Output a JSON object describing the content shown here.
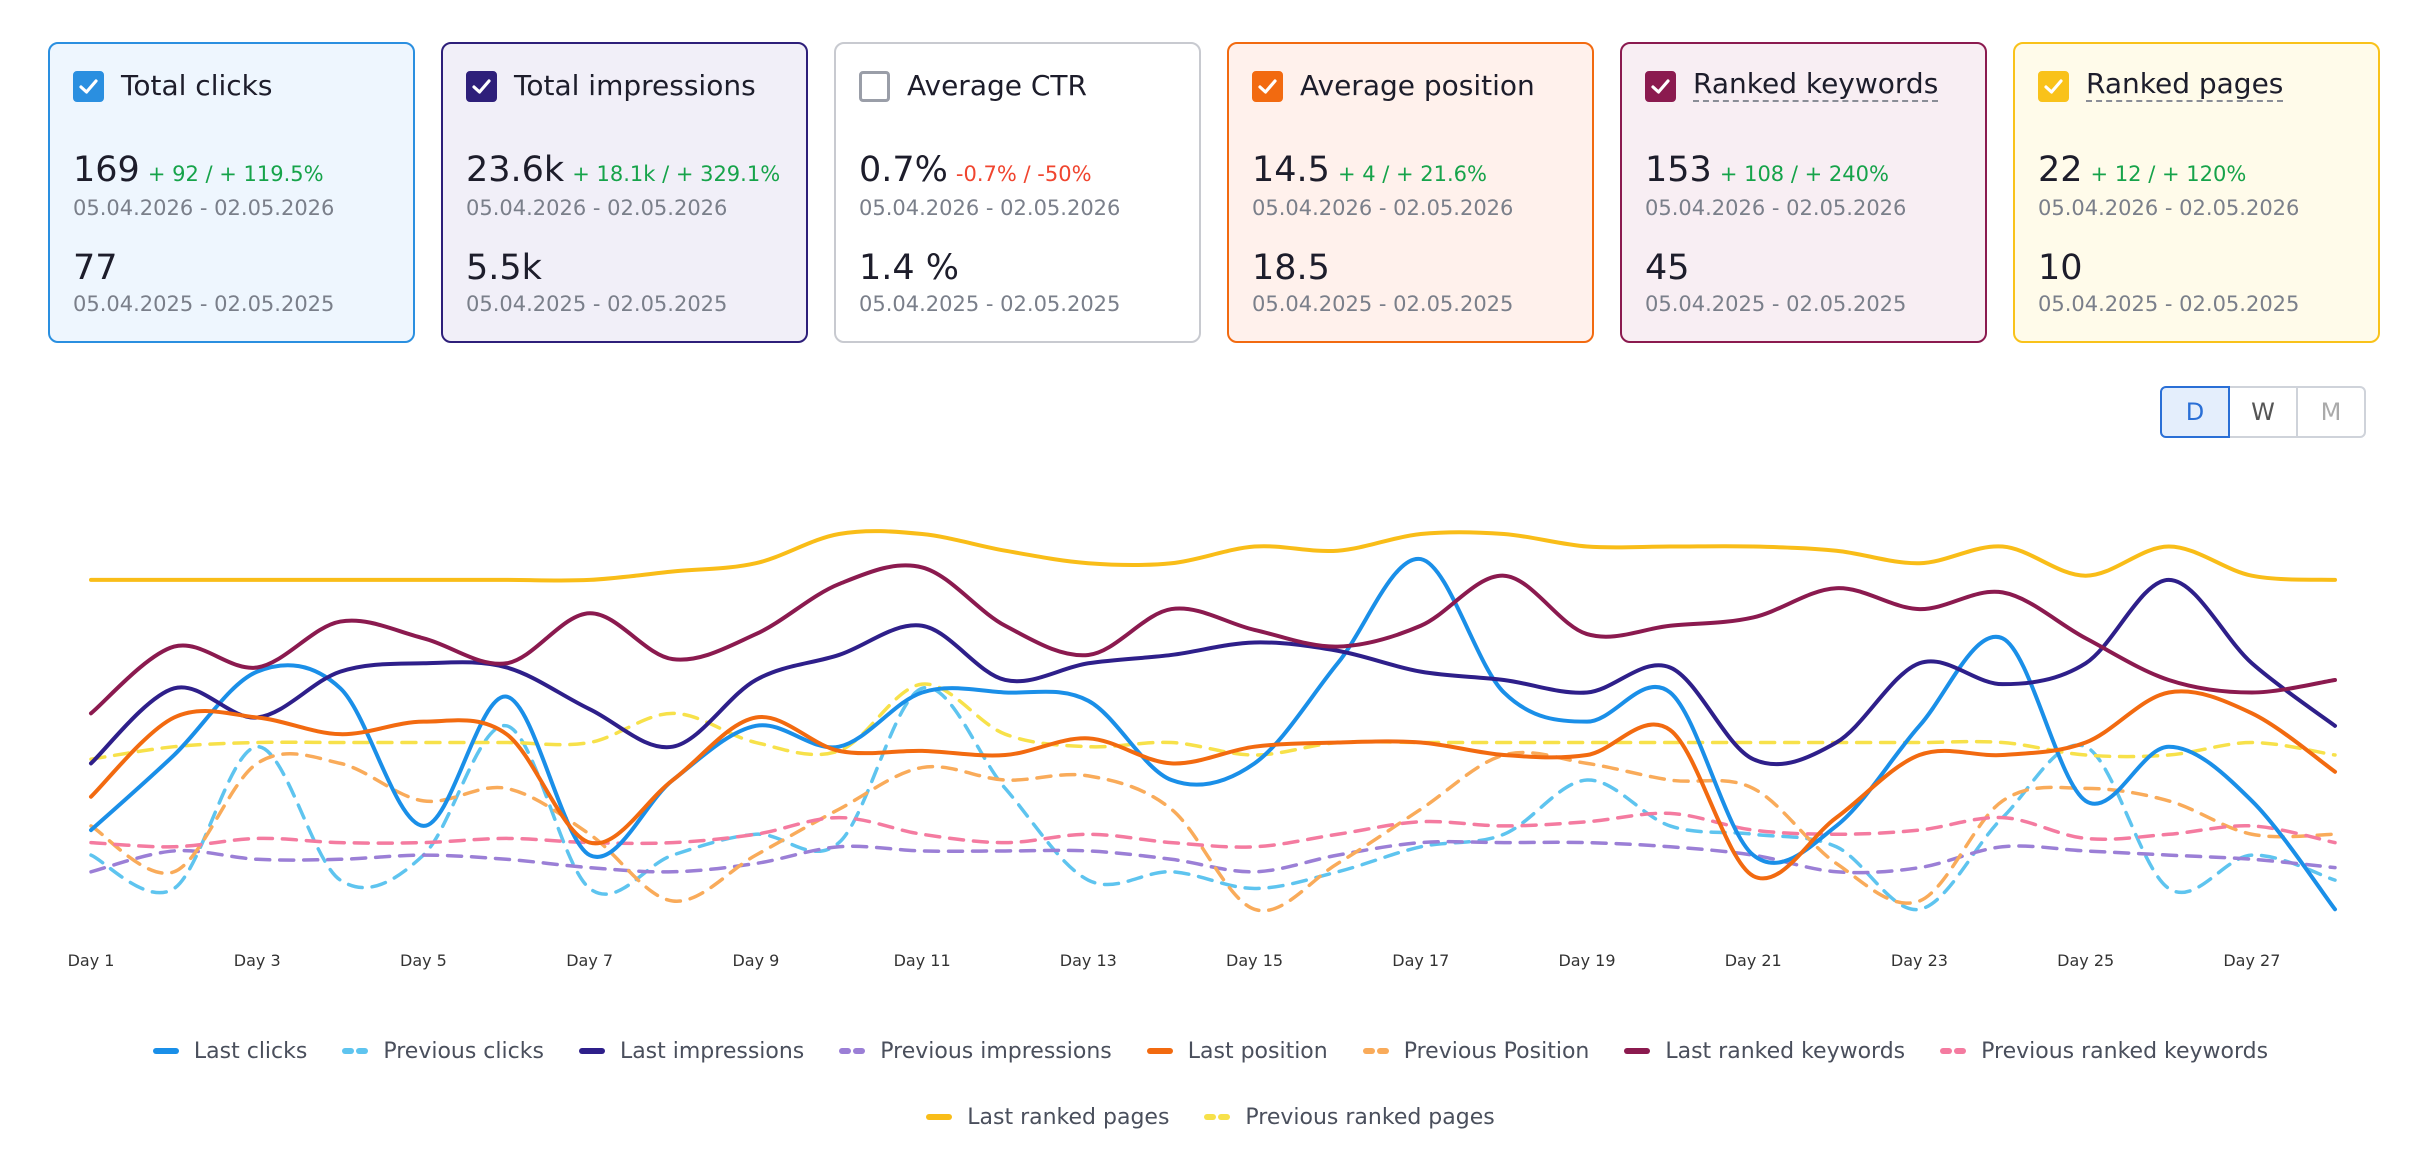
{
  "cards": [
    {
      "title": "Total clicks",
      "checked": true,
      "color": "#2a8fe0",
      "background": "#eef6fe",
      "value": 169,
      "change": "+ 92 / + 119.5%",
      "trend": "up",
      "period": "05.04.2026 - 02.05.2026",
      "previous_value": 77,
      "previous_period": "05.04.2025 - 02.05.2025",
      "underline": false
    },
    {
      "title": "Total impressions",
      "checked": true,
      "color": "#2e1f7a",
      "background": "#f1eff8",
      "value": "23.6k",
      "change": "+ 18.1k / + 329.1%",
      "trend": "up",
      "period": "05.04.2026 - 02.05.2026",
      "previous_value": "5.5k",
      "previous_period": "05.04.2025 - 02.05.2025",
      "underline": false
    },
    {
      "title": "Average CTR",
      "checked": false,
      "color": "#c8cad0",
      "background": "#ffffff",
      "value": "0.7%",
      "change": "-0.7% / -50%",
      "trend": "down",
      "period": "05.04.2026 - 02.05.2026",
      "previous_value": "1.4 %",
      "previous_period": "05.04.2025 - 02.05.2025",
      "underline": false
    },
    {
      "title": "Average position",
      "checked": true,
      "color": "#f26a10",
      "background": "#fff1ec",
      "value": 14.5,
      "change": "+ 4 / + 21.6%",
      "trend": "up",
      "period": "05.04.2026 - 02.05.2026",
      "previous_value": 18.5,
      "previous_period": "05.04.2025 - 02.05.2025",
      "underline": false
    },
    {
      "title": "Ranked keywords",
      "checked": true,
      "color": "#8b1a4f",
      "background": "#f8eef3",
      "value": 153,
      "change": "+ 108 / + 240%",
      "trend": "up",
      "period": "05.04.2026 - 02.05.2026",
      "previous_value": 45,
      "previous_period": "05.04.2025 - 02.05.2025",
      "underline": true
    },
    {
      "title": "Ranked pages",
      "checked": true,
      "color": "#f9c21a",
      "background": "#fffbea",
      "value": 22,
      "change": "+ 12 / + 120%",
      "trend": "up",
      "period": "05.04.2026 - 02.05.2026",
      "previous_value": 10,
      "previous_period": "05.04.2025 - 02.05.2025",
      "underline": true
    }
  ],
  "toggle": {
    "options": [
      "D",
      "W",
      "M"
    ],
    "active": 0
  },
  "chart_data": {
    "type": "line",
    "smooth": true,
    "categories": [
      "Day 1",
      null,
      "Day 3",
      null,
      "Day 5",
      null,
      "Day 7",
      null,
      "Day 9",
      null,
      "Day 11",
      null,
      "Day 13",
      null,
      "Day 15",
      null,
      "Day 17",
      null,
      "Day 19",
      null,
      "Day 21",
      null,
      "Day 23",
      null,
      "Day 25",
      null,
      "Day 27",
      null
    ],
    "ylim": [
      0,
      100
    ],
    "series": [
      {
        "name": "Last clicks",
        "color": "#1a8fe8",
        "dashed": false,
        "values": [
          23,
          41,
          61,
          57,
          24,
          55,
          17,
          35,
          48,
          43,
          56,
          56,
          54,
          35,
          39,
          63,
          88,
          56,
          49,
          56,
          17,
          24,
          48,
          69,
          30,
          43,
          30,
          4
        ]
      },
      {
        "name": "Previous clicks",
        "color": "#5ec4ef",
        "dashed": true,
        "values": [
          17,
          9,
          43,
          11,
          17,
          48,
          9,
          17,
          22,
          20,
          57,
          33,
          11,
          13,
          9,
          13,
          19,
          22,
          35,
          24,
          22,
          19,
          4,
          26,
          43,
          9,
          17,
          11
        ]
      },
      {
        "name": "Last impressions",
        "color": "#2e1f8a",
        "dashed": false,
        "values": [
          39,
          57,
          50,
          61,
          63,
          62,
          52,
          43,
          59,
          65,
          72,
          59,
          63,
          65,
          68,
          66,
          61,
          59,
          56,
          62,
          40,
          44,
          63,
          58,
          63,
          83,
          63,
          48
        ]
      },
      {
        "name": "Previous impressions",
        "color": "#9b7fd6",
        "dashed": true,
        "values": [
          13,
          18,
          16,
          16,
          17,
          16,
          14,
          13,
          15,
          19,
          18,
          18,
          18,
          16,
          13,
          17,
          20,
          20,
          20,
          19,
          17,
          13,
          14,
          19,
          18,
          17,
          16,
          14
        ]
      },
      {
        "name": "Last position",
        "color": "#f26a10",
        "dashed": false,
        "values": [
          31,
          50,
          50,
          46,
          49,
          46,
          20,
          35,
          50,
          42,
          42,
          41,
          45,
          39,
          43,
          44,
          44,
          41,
          41,
          47,
          12,
          26,
          41,
          41,
          44,
          56,
          51,
          37
        ]
      },
      {
        "name": "Previous Position",
        "color": "#f9ab5a",
        "dashed": true,
        "values": [
          24,
          13,
          39,
          39,
          30,
          33,
          22,
          6,
          17,
          28,
          38,
          35,
          36,
          28,
          4,
          15,
          28,
          41,
          39,
          35,
          33,
          15,
          6,
          30,
          33,
          30,
          22,
          22
        ]
      },
      {
        "name": "Last ranked keywords",
        "color": "#8b1a4f",
        "dashed": false,
        "values": [
          51,
          67,
          62,
          73,
          69,
          63,
          75,
          64,
          70,
          82,
          86,
          72,
          65,
          76,
          71,
          67,
          72,
          84,
          70,
          72,
          74,
          81,
          76,
          80,
          69,
          59,
          56,
          59
        ]
      },
      {
        "name": "Previous ranked keywords",
        "color": "#f47ba0",
        "dashed": true,
        "values": [
          20,
          19,
          21,
          20,
          20,
          21,
          20,
          20,
          22,
          26,
          22,
          20,
          22,
          20,
          19,
          22,
          25,
          24,
          25,
          27,
          23,
          22,
          23,
          26,
          21,
          22,
          24,
          20
        ]
      },
      {
        "name": "Last ranked pages",
        "color": "#f9bd18",
        "dashed": false,
        "values": [
          83,
          83,
          83,
          83,
          83,
          83,
          83,
          85,
          87,
          94,
          94,
          90,
          87,
          87,
          91,
          90,
          94,
          94,
          91,
          91,
          91,
          90,
          87,
          91,
          84,
          91,
          84,
          83
        ]
      },
      {
        "name": "Previous ranked pages",
        "color": "#f7e14a",
        "dashed": true,
        "values": [
          40,
          43,
          44,
          44,
          44,
          44,
          44,
          51,
          44,
          42,
          58,
          46,
          43,
          44,
          41,
          44,
          44,
          44,
          44,
          44,
          44,
          44,
          44,
          44,
          41,
          41,
          44,
          41
        ]
      }
    ]
  }
}
